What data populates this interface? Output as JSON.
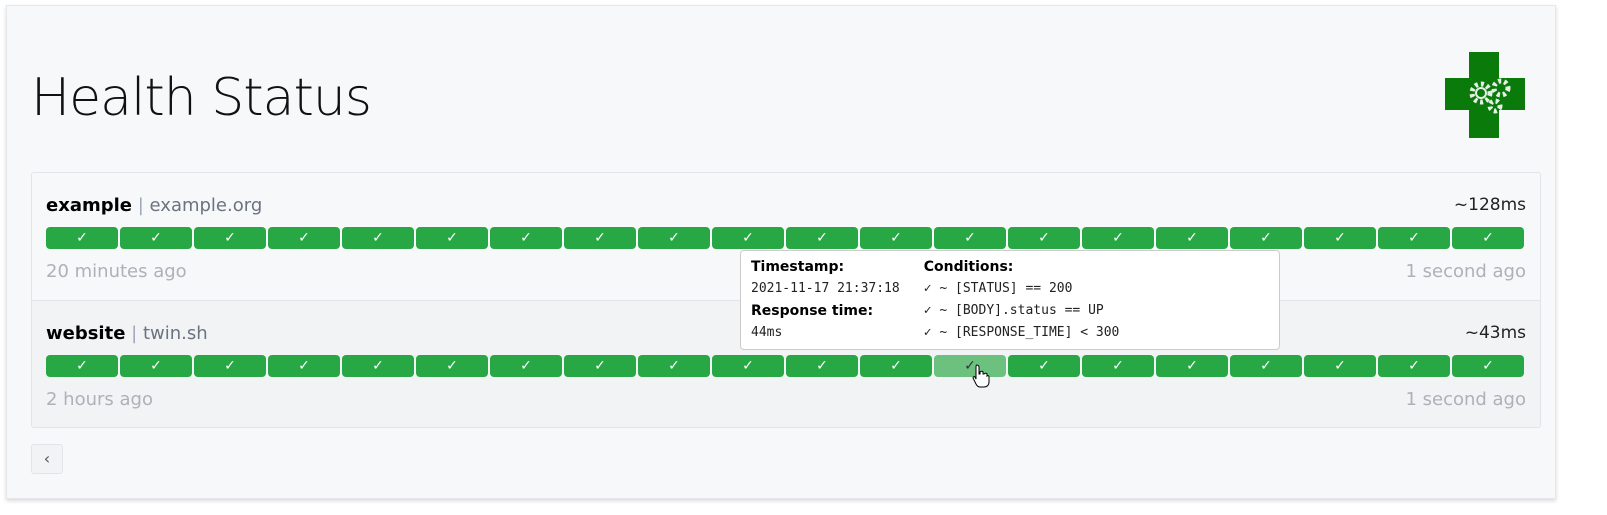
{
  "header": {
    "title": "Health Status",
    "logo_icon": "health-cross-gears-logo"
  },
  "services": [
    {
      "name": "example",
      "separator": "|",
      "host": "example.org",
      "avg_response": "~128ms",
      "oldest": "20 minutes ago",
      "newest": "1 second ago",
      "results": [
        "✓",
        "✓",
        "✓",
        "✓",
        "✓",
        "✓",
        "✓",
        "✓",
        "✓",
        "✓",
        "✓",
        "✓",
        "✓",
        "✓",
        "✓",
        "✓",
        "✓",
        "✓",
        "✓",
        "✓"
      ]
    },
    {
      "name": "website",
      "separator": "|",
      "host": "twin.sh",
      "avg_response": "~43ms",
      "oldest": "2 hours ago",
      "newest": "1 second ago",
      "results": [
        "✓",
        "✓",
        "✓",
        "✓",
        "✓",
        "✓",
        "✓",
        "✓",
        "✓",
        "✓",
        "✓",
        "✓",
        "✓",
        "✓",
        "✓",
        "✓",
        "✓",
        "✓",
        "✓",
        "✓"
      ]
    }
  ],
  "tooltip": {
    "timestamp_label": "Timestamp:",
    "timestamp": "2021-11-17 21:37:18",
    "response_label": "Response time:",
    "response": "44ms",
    "conditions_label": "Conditions:",
    "conditions": [
      "✓ ~ [STATUS] == 200",
      "✓ ~ [BODY].status == UP",
      "✓ ~ [RESPONSE_TIME] < 300"
    ]
  },
  "pagination": {
    "prev_label": "‹"
  },
  "colors": {
    "success": "#28a745",
    "hover": "#6cc17f",
    "logo": "#0a7a0a"
  }
}
